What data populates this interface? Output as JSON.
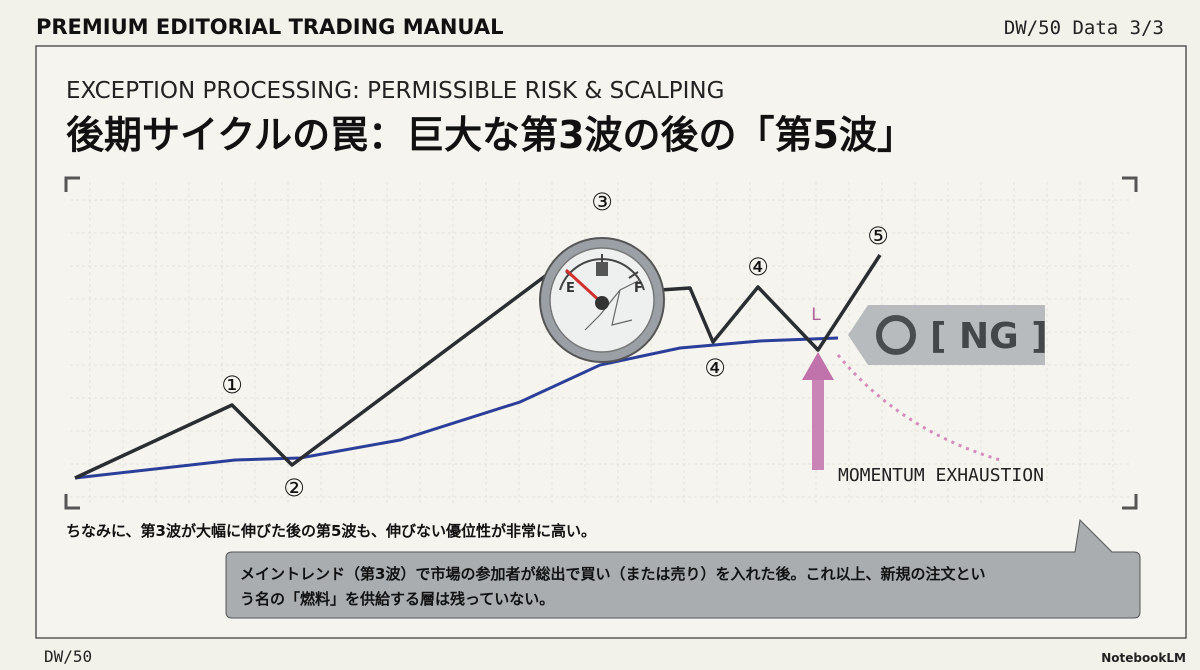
{
  "header": {
    "title": "PREMIUM EDITORIAL TRADING MANUAL",
    "page": "DW/50 Data 3/3"
  },
  "slide": {
    "kicker": "EXCEPTION PROCESSING: PERMISSIBLE RISK & SCALPING",
    "title": "後期サイクルの罠：巨大な第3波の後の「第5波」"
  },
  "diagram": {
    "wave_labels": [
      "①",
      "②",
      "③",
      "④",
      "④",
      "⑤"
    ],
    "gauge_labels": [
      "E",
      "F"
    ],
    "low_label": "L",
    "ng_label": "[ NG ]",
    "annotation": "MOMENTUM EXHAUSTION"
  },
  "note": "ちなみに、第3波が大幅に伸びた後の第5波も、伸びない優位性が非常に高い。",
  "callout": {
    "lines": [
      "メイントレンド（第3波）で市場の参加者が総出で買い（または売り）を入れた後。これ以上、新規の注文とい",
      "う名の「燃料」を供給する層は残っていない。"
    ]
  },
  "footer": {
    "left": "DW/50",
    "brand": "NotebookLM"
  }
}
